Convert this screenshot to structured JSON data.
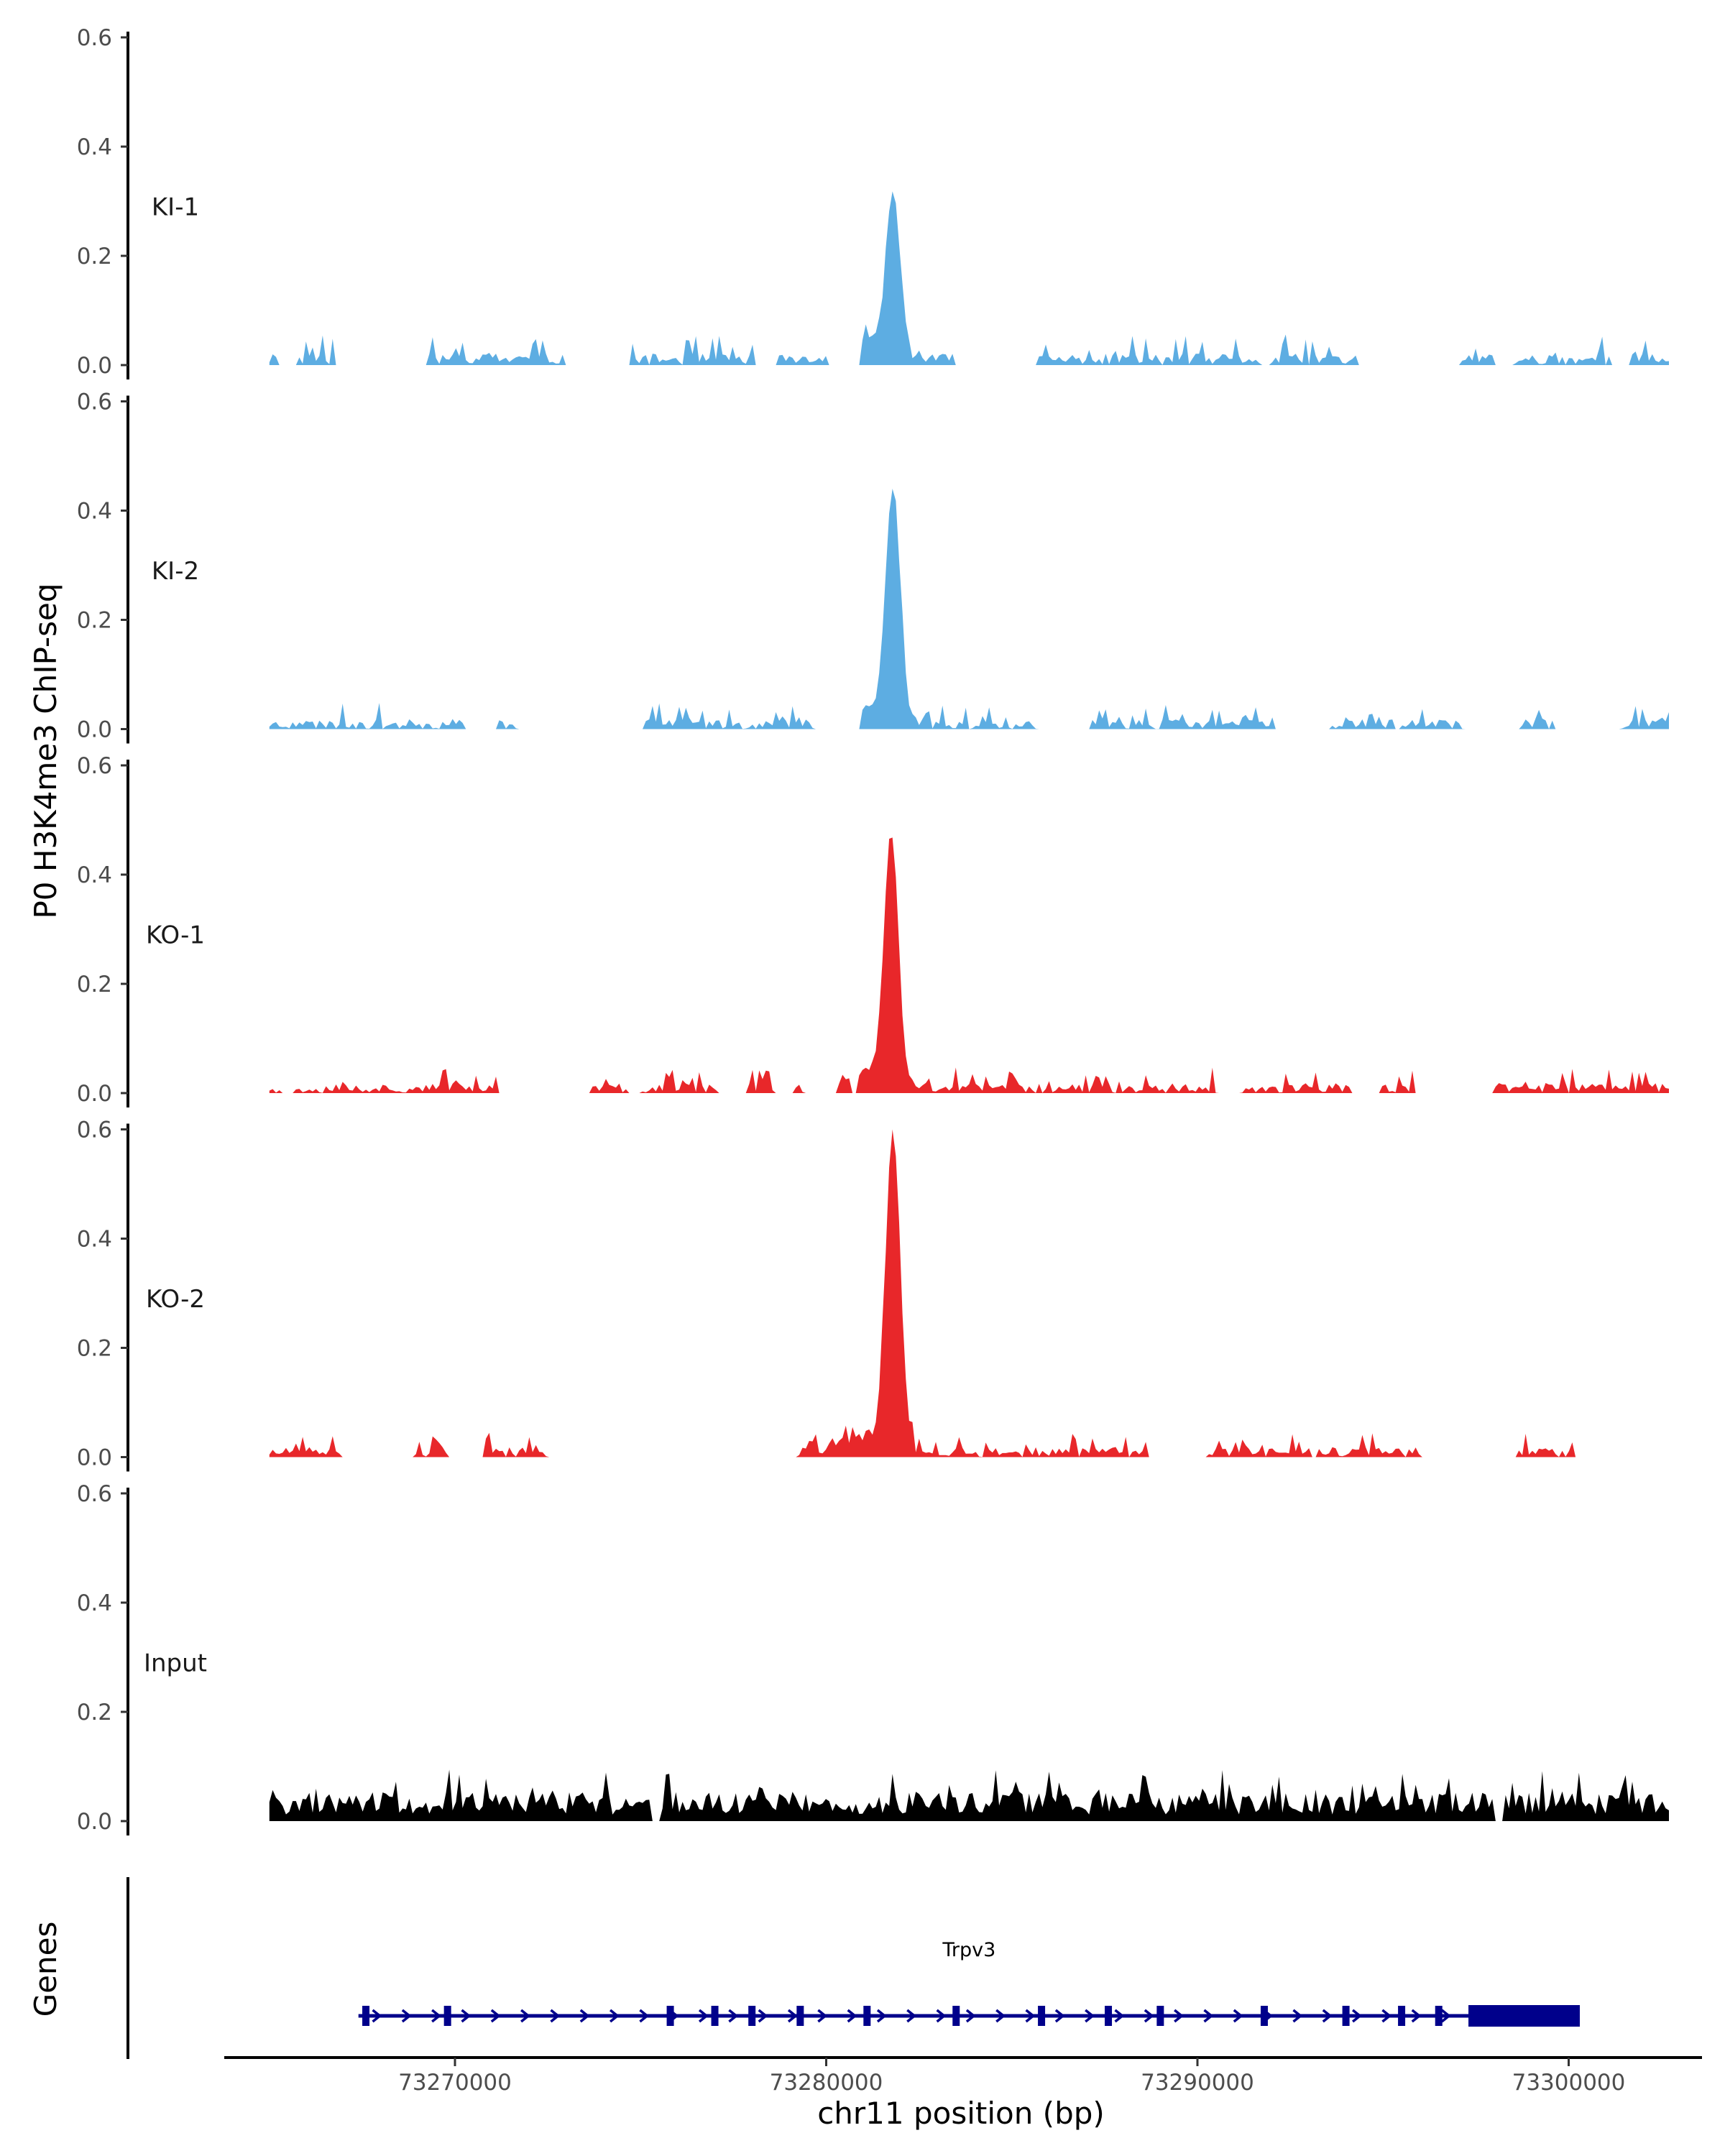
{
  "chart_data": {
    "type": "area",
    "ylabel": "P0 H3K4me3 ChIP-seq",
    "xlabel": "chr11 position (bp)",
    "genes_label": "Genes",
    "ylim": [
      0,
      0.6
    ],
    "yticks": [
      0.0,
      0.2,
      0.4,
      0.6
    ],
    "ytick_labels": [
      "0.0",
      "0.2",
      "0.4",
      "0.6"
    ],
    "xlim": [
      73262000,
      73304000
    ],
    "xticks": [
      73270000,
      73280000,
      73290000,
      73300000
    ],
    "xtick_labels": [
      "73270000",
      "73280000",
      "73290000",
      "73300000"
    ],
    "signal_range": [
      73265000,
      73302700
    ],
    "colors": {
      "KI": "#5dade2",
      "KO": "#e8272a",
      "Input": "#000000",
      "gene": "#00008b"
    },
    "tracks": [
      {
        "name": "KI-1",
        "color": "#5dade2",
        "peak": {
          "x": 73281800,
          "y": 0.29
        },
        "noise": 0.035,
        "seed": 11,
        "gaps": 0.45
      },
      {
        "name": "KI-2",
        "color": "#5dade2",
        "peak": {
          "x": 73281800,
          "y": 0.42
        },
        "noise": 0.03,
        "seed": 23,
        "gaps": 0.42
      },
      {
        "name": "KO-1",
        "color": "#e8272a",
        "peak": {
          "x": 73281750,
          "y": 0.45
        },
        "noise": 0.03,
        "seed": 37,
        "gaps": 0.4
      },
      {
        "name": "KO-2",
        "color": "#e8272a",
        "peak": {
          "x": 73281800,
          "y": 0.57
        },
        "noise": 0.03,
        "seed": 51,
        "gaps": 0.4
      },
      {
        "name": "Input",
        "color": "#000000",
        "peak": null,
        "noise": 0.07,
        "seed": 77,
        "gaps": 0.04
      }
    ],
    "gene": {
      "name": "Trpv3",
      "strand": "+",
      "start": 73267400,
      "end": 73300300,
      "utr_start": 73297300,
      "exons": [
        73267600,
        73269800,
        73275800,
        73277000,
        73278000,
        73279300,
        73281100,
        73283500,
        73285800,
        73287600,
        73289000,
        73291800,
        73294000,
        73295500,
        73296500
      ]
    }
  }
}
